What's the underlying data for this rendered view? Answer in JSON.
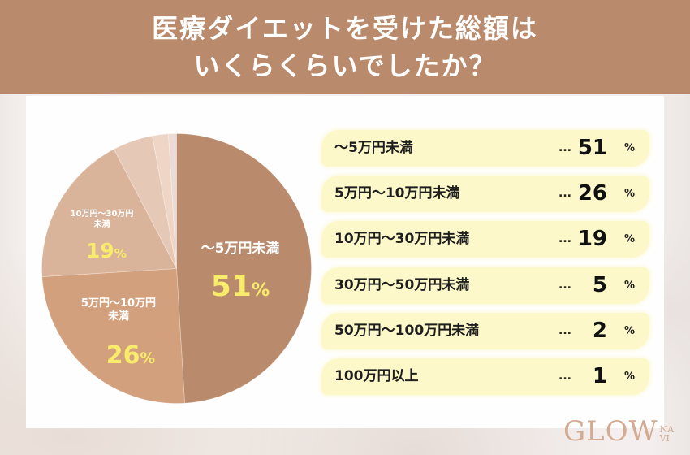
{
  "header": {
    "title_line1": "医療ダイエットを受けた総額は",
    "title_line2": "いくらくらいでしたか？"
  },
  "colors": {
    "header_bg": "#b98a6b",
    "slice_colors": [
      "#b98a6b",
      "#d2a07d",
      "#d9b49a",
      "#e5c8b5",
      "#efd5c6",
      "#eadbd6"
    ],
    "pct_label": "#f8ec6a",
    "row_bg": "#fdf8c9"
  },
  "pie": {
    "labels": [
      {
        "line1": "〜5万円未満",
        "line2": "",
        "pct": "51",
        "unit": "%"
      },
      {
        "line1": "5万円〜10万円",
        "line2": "未満",
        "pct": "26",
        "unit": "%"
      },
      {
        "line1": "10万円〜30万円",
        "line2": "未満",
        "pct": "19",
        "unit": "%"
      }
    ]
  },
  "list": {
    "rows": [
      {
        "label": "〜5万円未満",
        "dots": "...",
        "value": "51",
        "unit": "%"
      },
      {
        "label": "5万円〜10万円未満",
        "dots": "...",
        "value": "26",
        "unit": "%"
      },
      {
        "label": "10万円〜30万円未満",
        "dots": "...",
        "value": "19",
        "unit": "%"
      },
      {
        "label": "30万円〜50万円未満",
        "dots": "...",
        "value": "5",
        "unit": "%"
      },
      {
        "label": "50万円〜100万円未満",
        "dots": "...",
        "value": "2",
        "unit": "%"
      },
      {
        "label": "100万円以上",
        "dots": "...",
        "value": "1",
        "unit": "%"
      }
    ]
  },
  "logo": {
    "main": "GLOW",
    "sub_top": "NA",
    "sub_bottom": "VI"
  },
  "chart_data": {
    "type": "pie",
    "title": "医療ダイエットを受けた総額はいくらくらいでしたか？",
    "categories": [
      "〜5万円未満",
      "5万円〜10万円未満",
      "10万円〜30万円未満",
      "30万円〜50万円未満",
      "50万円〜100万円未満",
      "100万円以上"
    ],
    "values": [
      51,
      26,
      19,
      5,
      2,
      1
    ],
    "unit": "%",
    "legend_position": "right",
    "start_angle": "12 o'clock",
    "direction": "clockwise"
  }
}
